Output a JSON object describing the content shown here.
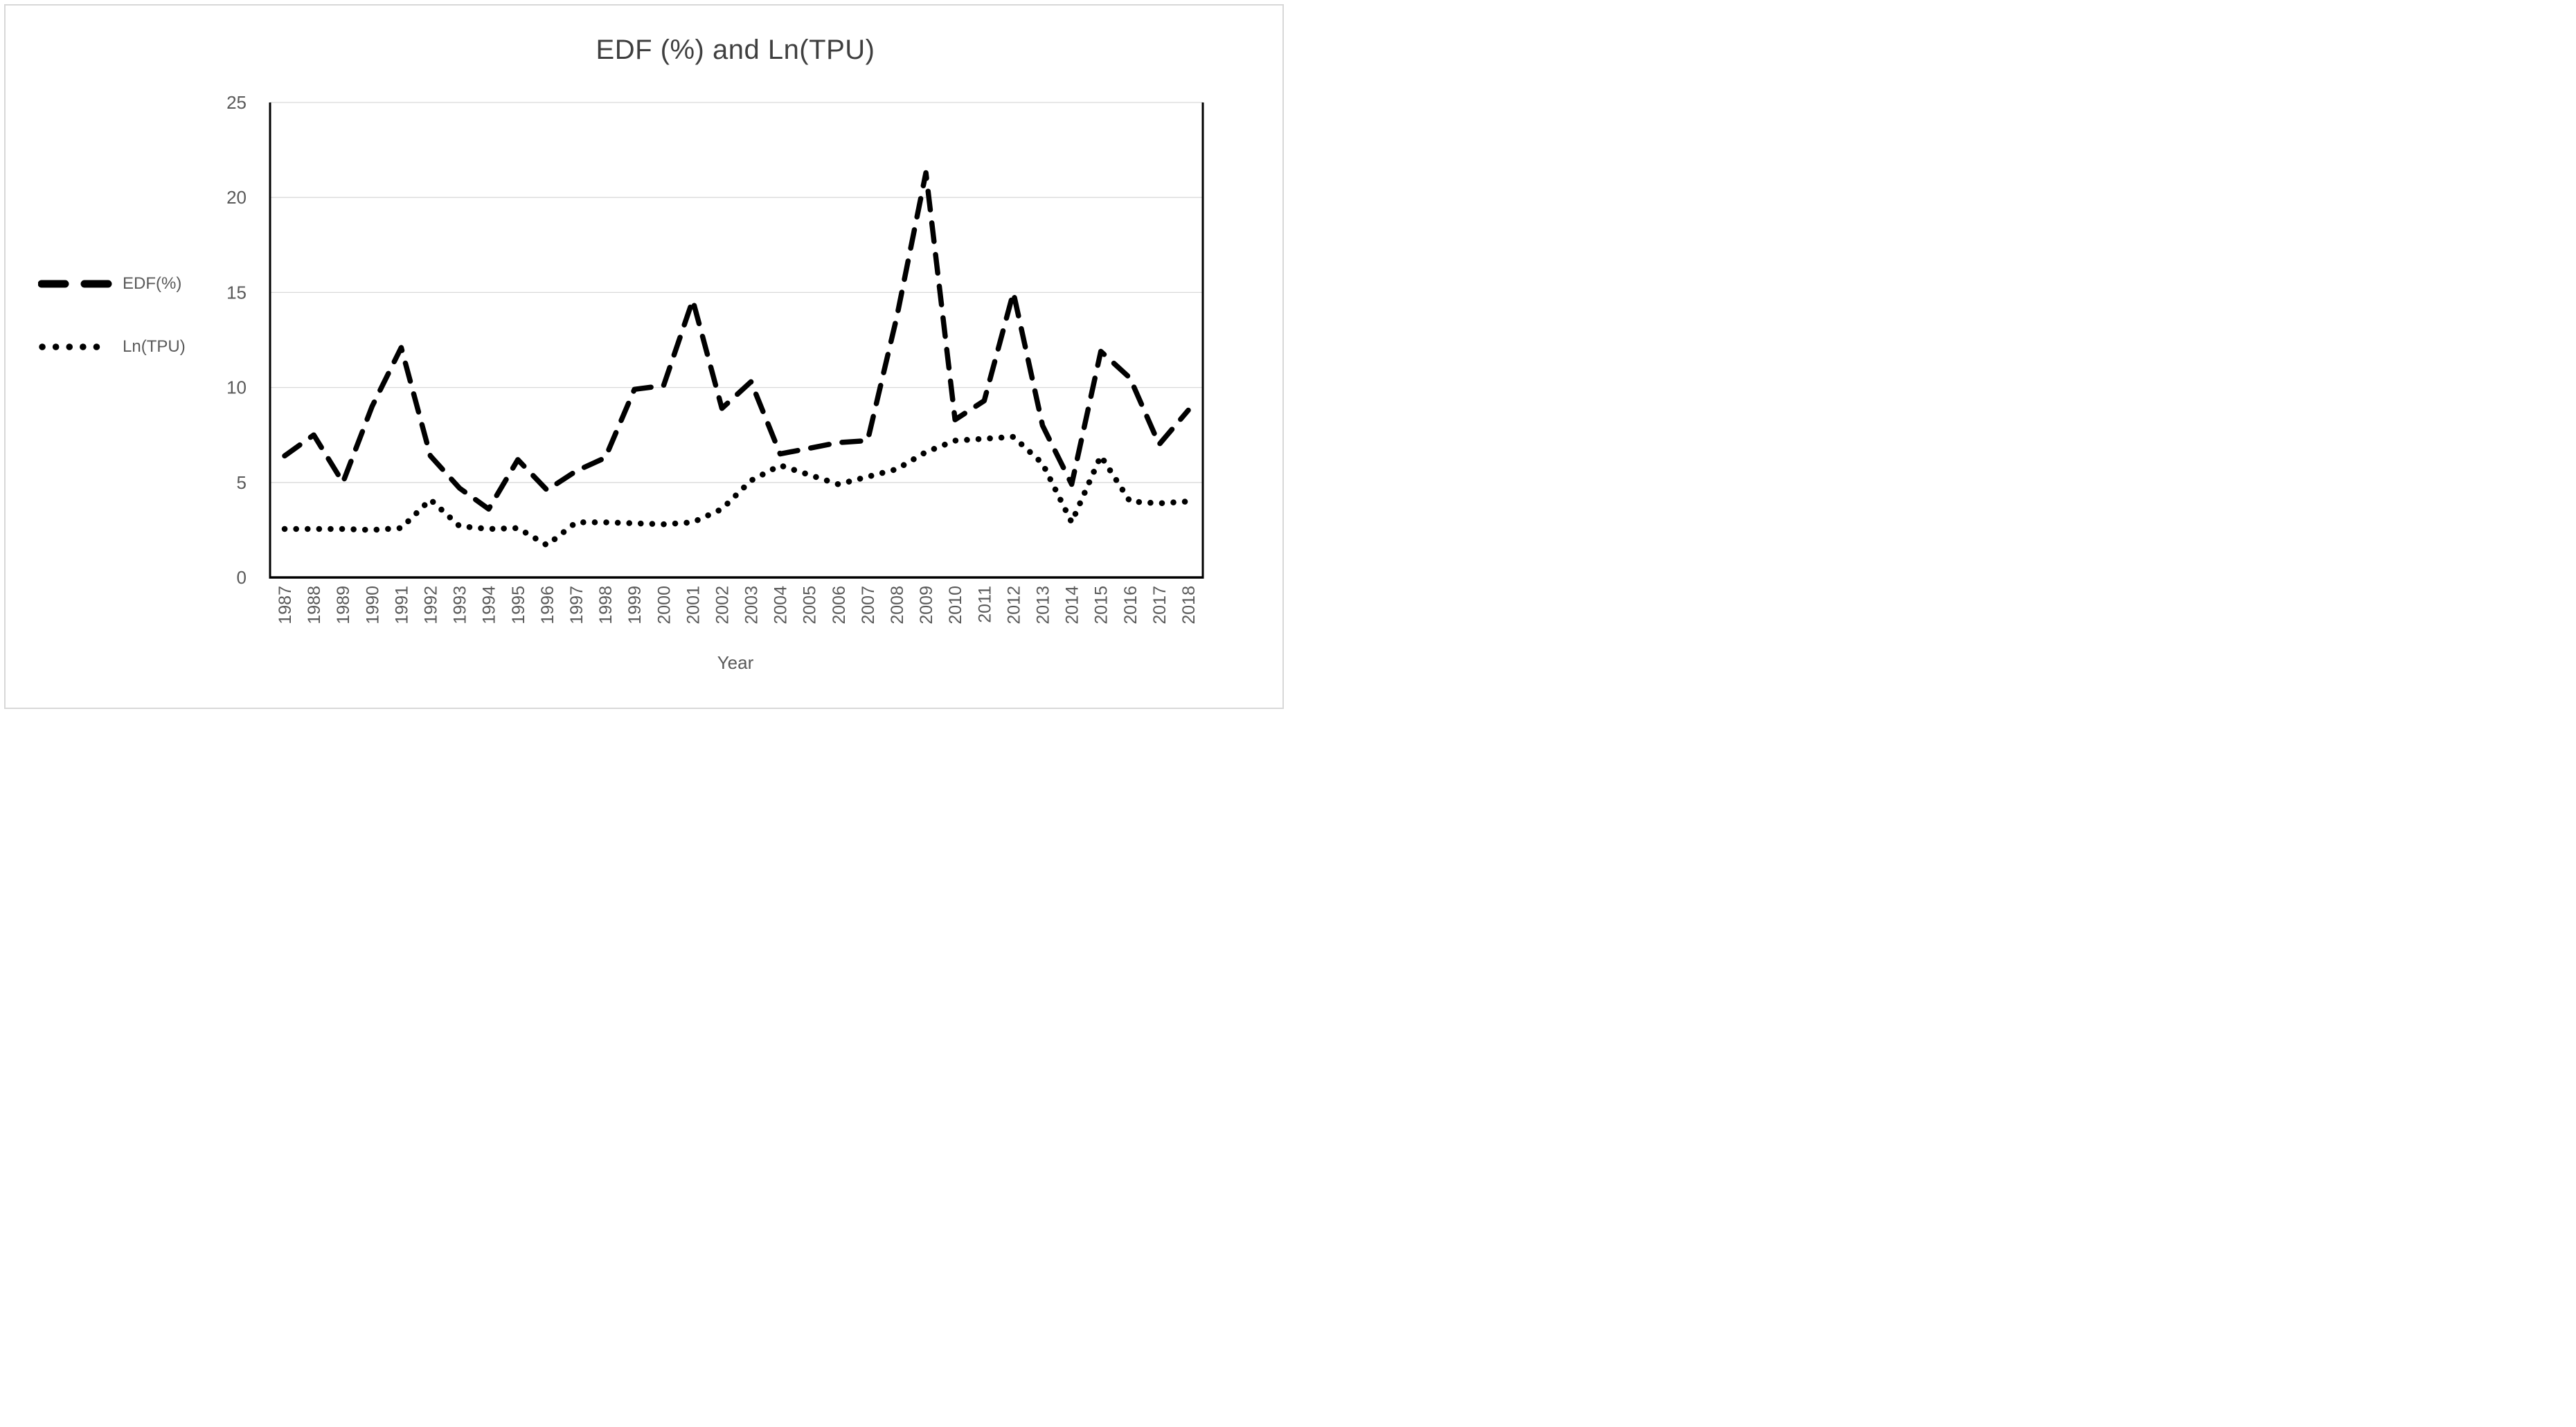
{
  "figure": {
    "background": "#ffffff",
    "frame_border_color": "#d8d8d8",
    "text_color": "#595959",
    "title_color": "#3f3f3f",
    "line_color": "#000000",
    "gridline_color": "#d9d9d9"
  },
  "chart_data": {
    "type": "line",
    "title": "EDF (%) and Ln(TPU)",
    "xlabel": "Year",
    "ylabel": "",
    "ylim": [
      0,
      25
    ],
    "yticks": [
      0,
      5,
      10,
      15,
      20,
      25
    ],
    "grid": "horizontal",
    "legend_position": "left-outside",
    "categories": [
      "1987",
      "1988",
      "1989",
      "1990",
      "1991",
      "1992",
      "1993",
      "1994",
      "1995",
      "1996",
      "1997",
      "1998",
      "1999",
      "2000",
      "2001",
      "2002",
      "2003",
      "2004",
      "2005",
      "2006",
      "2007",
      "2008",
      "2009",
      "2010",
      "2011",
      "2012",
      "2013",
      "2014",
      "2015",
      "2016",
      "2017",
      "2018"
    ],
    "series": [
      {
        "name": "EDF(%)",
        "style": "dashed",
        "color": "#000000",
        "values": [
          6.4,
          7.5,
          5.0,
          9.0,
          12.1,
          6.4,
          4.7,
          3.6,
          6.2,
          4.6,
          5.6,
          6.3,
          9.9,
          10.1,
          14.6,
          8.9,
          10.3,
          6.5,
          6.8,
          7.1,
          7.2,
          13.7,
          21.3,
          8.3,
          9.3,
          15.0,
          8.0,
          4.9,
          11.9,
          10.5,
          7.0,
          8.8
        ]
      },
      {
        "name": "Ln(TPU)",
        "style": "dotted",
        "color": "#000000",
        "values": [
          2.55,
          2.55,
          2.55,
          2.5,
          2.6,
          4.1,
          2.7,
          2.55,
          2.6,
          1.7,
          2.9,
          2.9,
          2.85,
          2.8,
          2.9,
          3.6,
          5.1,
          5.9,
          5.4,
          4.9,
          5.3,
          5.7,
          6.6,
          7.2,
          7.3,
          7.4,
          6.0,
          2.9,
          6.4,
          4.0,
          3.9,
          4.0
        ]
      }
    ]
  }
}
